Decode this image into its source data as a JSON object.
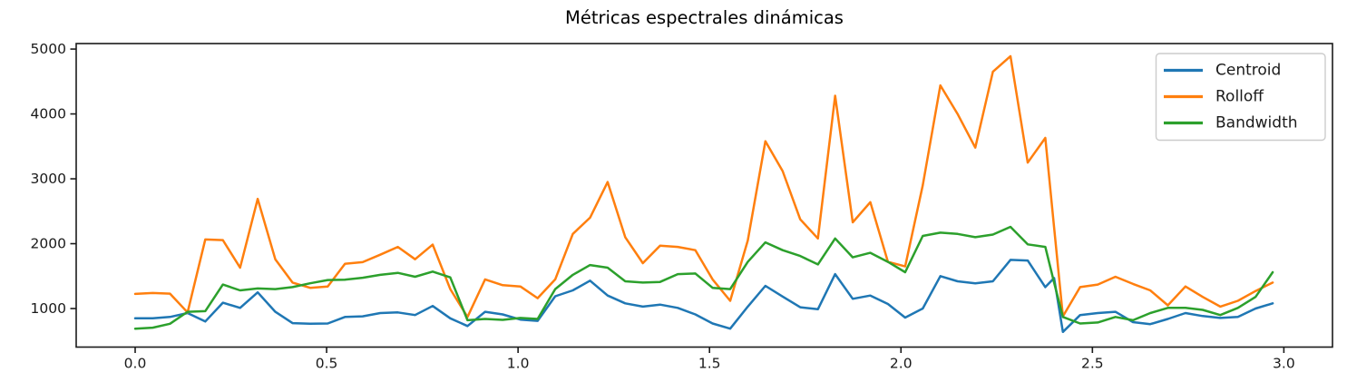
{
  "figure": {
    "background": "#ffffff",
    "frame_color": "#1a1a1a",
    "legend_border_color": "#cccccc"
  },
  "chart_data": {
    "type": "line",
    "title": "Métricas espectrales dinámicas",
    "xlabel": "",
    "ylabel": "",
    "grid": false,
    "legend_position": "upper right",
    "legend_entries": [
      "Centroid",
      "Rolloff",
      "Bandwidth"
    ],
    "xlim": [
      -0.154,
      3.127
    ],
    "ylim": [
      406,
      5085
    ],
    "xticks": [
      0.0,
      0.5,
      1.0,
      1.5,
      2.0,
      2.5,
      3.0
    ],
    "xtick_labels": [
      "0.0",
      "0.5",
      "1.0",
      "1.5",
      "2.0",
      "2.5",
      "3.0"
    ],
    "yticks": [
      1000,
      2000,
      3000,
      4000,
      5000
    ],
    "ytick_labels": [
      "1000",
      "2000",
      "3000",
      "4000",
      "5000"
    ],
    "x": [
      0.0,
      0.046,
      0.091,
      0.137,
      0.183,
      0.229,
      0.274,
      0.32,
      0.366,
      0.411,
      0.457,
      0.503,
      0.548,
      0.594,
      0.64,
      0.686,
      0.731,
      0.777,
      0.823,
      0.868,
      0.914,
      0.96,
      1.006,
      1.051,
      1.097,
      1.143,
      1.188,
      1.234,
      1.28,
      1.326,
      1.371,
      1.417,
      1.463,
      1.508,
      1.554,
      1.6,
      1.646,
      1.691,
      1.737,
      1.783,
      1.828,
      1.874,
      1.92,
      1.966,
      2.011,
      2.057,
      2.103,
      2.148,
      2.194,
      2.24,
      2.286,
      2.331,
      2.377,
      2.4,
      2.423,
      2.468,
      2.514,
      2.56,
      2.606,
      2.651,
      2.697,
      2.743,
      2.788,
      2.834,
      2.88,
      2.926,
      2.971
    ],
    "series": [
      {
        "name": "Centroid",
        "color": "#1f77b4",
        "values": [
          850,
          850,
          870,
          930,
          800,
          1090,
          1010,
          1250,
          950,
          775,
          765,
          770,
          870,
          880,
          930,
          940,
          900,
          1040,
          850,
          730,
          950,
          910,
          830,
          810,
          1190,
          1280,
          1430,
          1200,
          1080,
          1030,
          1060,
          1010,
          910,
          770,
          690,
          1030,
          1350,
          1185,
          1020,
          990,
          1530,
          1150,
          1200,
          1070,
          860,
          1000,
          1500,
          1420,
          1390,
          1420,
          1750,
          1740,
          1330,
          1470,
          640,
          900,
          930,
          950,
          790,
          760,
          840,
          930,
          885,
          855,
          870,
          1000,
          1080
        ]
      },
      {
        "name": "Rolloff",
        "color": "#ff7f0e",
        "values": [
          1225,
          1240,
          1230,
          940,
          2065,
          2055,
          1630,
          2690,
          1760,
          1400,
          1320,
          1340,
          1690,
          1715,
          1830,
          1950,
          1760,
          1985,
          1300,
          870,
          1450,
          1360,
          1340,
          1160,
          1450,
          2150,
          2400,
          2950,
          2100,
          1700,
          1970,
          1950,
          1900,
          1450,
          1120,
          2050,
          3580,
          3120,
          2375,
          2080,
          4280,
          2330,
          2640,
          1720,
          1650,
          2900,
          4440,
          4000,
          3480,
          4650,
          4890,
          3250,
          3630,
          2250,
          880,
          1330,
          1370,
          1490,
          1380,
          1280,
          1050,
          1340,
          1180,
          1030,
          1120,
          1270,
          1400
        ]
      },
      {
        "name": "Bandwidth",
        "color": "#2ca02c",
        "values": [
          690,
          705,
          765,
          950,
          960,
          1370,
          1280,
          1310,
          1300,
          1330,
          1390,
          1440,
          1445,
          1475,
          1520,
          1550,
          1490,
          1570,
          1480,
          820,
          840,
          825,
          855,
          840,
          1300,
          1520,
          1670,
          1630,
          1420,
          1400,
          1410,
          1530,
          1540,
          1320,
          1300,
          1720,
          2020,
          1900,
          1810,
          1680,
          2080,
          1790,
          1860,
          1720,
          1560,
          2120,
          2170,
          2150,
          2100,
          2140,
          2260,
          1990,
          1950,
          1400,
          870,
          770,
          785,
          870,
          820,
          930,
          1010,
          1010,
          980,
          900,
          1010,
          1180,
          1560
        ]
      }
    ]
  }
}
